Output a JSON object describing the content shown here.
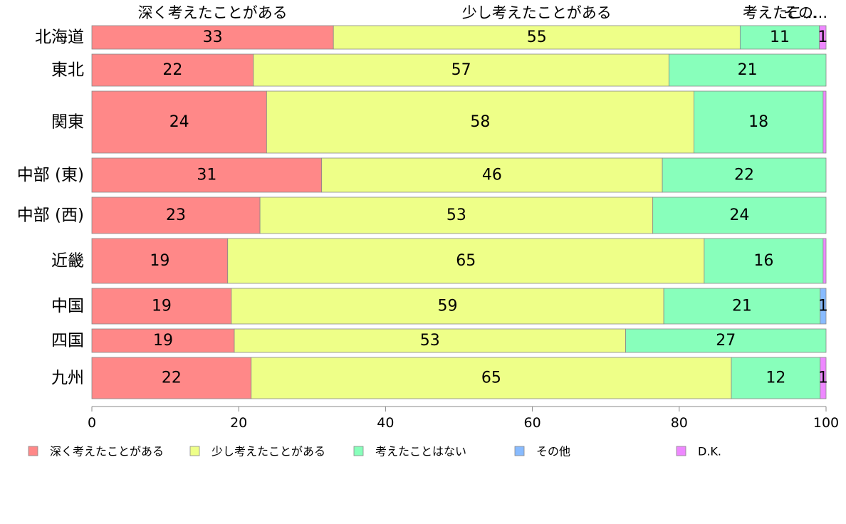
{
  "chart_data": {
    "type": "bar",
    "orientation": "horizontal",
    "stacked": true,
    "categories": [
      "北海道",
      "東北",
      "関東",
      "中部 (東)",
      "中部 (西)",
      "近畿",
      "中国",
      "四国",
      "九州"
    ],
    "weights": [
      33,
      45,
      87,
      48,
      51,
      63,
      50,
      33,
      58
    ],
    "series": [
      {
        "name": "深く考えたことがある",
        "color": "#ff8888",
        "values": [
          32.9,
          22.0,
          23.8,
          31.3,
          22.9,
          18.5,
          19.0,
          19.4,
          21.7
        ]
      },
      {
        "name": "少し考えたことがある",
        "color": "#eeff88",
        "values": [
          55.4,
          56.6,
          58.2,
          46.4,
          53.5,
          64.9,
          58.9,
          53.3,
          65.4
        ]
      },
      {
        "name": "考えたことはない",
        "color": "#88ffbb",
        "values": [
          10.8,
          21.4,
          17.6,
          22.3,
          23.6,
          16.2,
          21.3,
          27.3,
          12.1
        ]
      },
      {
        "name": "その他",
        "color": "#88bbff",
        "values": [
          0,
          0,
          0,
          0,
          0,
          0,
          0.8,
          0,
          0
        ]
      },
      {
        "name": "D.K.",
        "color": "#ee88ff",
        "values": [
          0.9,
          0,
          0.4,
          0,
          0,
          0.4,
          0,
          0,
          0.8
        ]
      }
    ],
    "top_labels": [
      "深く考えたことがある",
      "少し考えたことがある",
      "考えたこ...",
      "その..."
    ],
    "bar_labels": [
      [
        "33",
        "55",
        "11",
        "",
        "1"
      ],
      [
        "22",
        "57",
        "21",
        "",
        ""
      ],
      [
        "24",
        "58",
        "18",
        "",
        ""
      ],
      [
        "31",
        "46",
        "22",
        "",
        ""
      ],
      [
        "23",
        "53",
        "24",
        "",
        ""
      ],
      [
        "19",
        "65",
        "16",
        "",
        ""
      ],
      [
        "19",
        "59",
        "21",
        "1",
        ""
      ],
      [
        "19",
        "53",
        "27",
        "",
        ""
      ],
      [
        "22",
        "65",
        "12",
        "",
        "1"
      ]
    ],
    "xticks": [
      "0",
      "20",
      "40",
      "60",
      "80",
      "100"
    ],
    "xlim": [
      0,
      100
    ],
    "legend_position": "bottom",
    "grid": false
  }
}
